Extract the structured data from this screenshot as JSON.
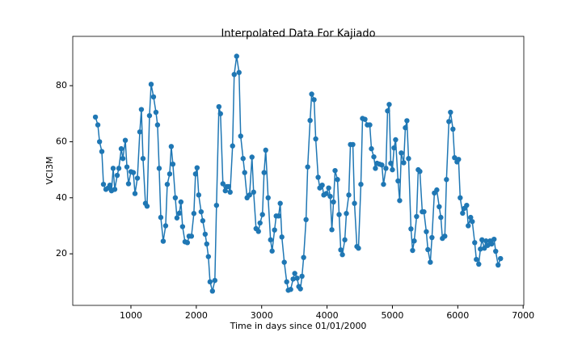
{
  "chart_data": {
    "type": "line",
    "title": "Interpolated Data For Kajiado",
    "x_label": "Time in days since 01/01/2000",
    "y_label": "VCI3M",
    "color": "#1f77b4",
    "markers": true,
    "xlim": [
      110,
      7010
    ],
    "ylim": [
      1.6,
      97.6
    ],
    "xticks": [
      1000,
      2000,
      3000,
      4000,
      5000,
      6000,
      7000
    ],
    "yticks": [
      20,
      40,
      60,
      80
    ],
    "x": [
      457,
      494,
      520,
      555,
      580,
      617,
      652,
      679,
      703,
      728,
      753,
      790,
      815,
      852,
      877,
      914,
      939,
      963,
      1000,
      1037,
      1062,
      1099,
      1136,
      1160,
      1185,
      1222,
      1247,
      1284,
      1309,
      1346,
      1383,
      1407,
      1432,
      1457,
      1494,
      1531,
      1556,
      1593,
      1617,
      1642,
      1679,
      1704,
      1741,
      1765,
      1790,
      1827,
      1864,
      1889,
      1926,
      1963,
      1988,
      2012,
      2037,
      2074,
      2099,
      2136,
      2160,
      2185,
      2210,
      2247,
      2284,
      2309,
      2346,
      2370,
      2407,
      2444,
      2469,
      2494,
      2518,
      2555,
      2580,
      2617,
      2654,
      2679,
      2716,
      2740,
      2777,
      2815,
      2852,
      2877,
      2914,
      2951,
      2975,
      3012,
      3037,
      3062,
      3099,
      3136,
      3160,
      3197,
      3222,
      3259,
      3284,
      3309,
      3346,
      3383,
      3407,
      3444,
      3481,
      3506,
      3543,
      3568,
      3593,
      3617,
      3642,
      3679,
      3704,
      3741,
      3765,
      3802,
      3827,
      3864,
      3889,
      3926,
      3950,
      3988,
      4025,
      4049,
      4074,
      4099,
      4123,
      4160,
      4185,
      4210,
      4235,
      4272,
      4296,
      4333,
      4358,
      4395,
      4420,
      4457,
      4481,
      4518,
      4543,
      4580,
      4617,
      4654,
      4679,
      4716,
      4740,
      4765,
      4802,
      4839,
      4864,
      4901,
      4926,
      4951,
      4975,
      5000,
      5025,
      5049,
      5086,
      5111,
      5136,
      5173,
      5198,
      5222,
      5247,
      5284,
      5309,
      5334,
      5370,
      5395,
      5420,
      5457,
      5482,
      5519,
      5543,
      5580,
      5605,
      5642,
      5679,
      5716,
      5741,
      5765,
      5802,
      5827,
      5864,
      5889,
      5926,
      5951,
      5988,
      6012,
      6037,
      6074,
      6099,
      6136,
      6160,
      6197,
      6222,
      6259,
      6284,
      6321,
      6346,
      6370,
      6407,
      6432,
      6457,
      6494,
      6518,
      6555,
      6580,
      6617,
      6654
    ],
    "values": [
      68.8,
      66,
      60,
      56.5,
      44.8,
      43,
      43.5,
      44.5,
      42.5,
      50.5,
      43,
      48,
      50.5,
      57.5,
      54,
      60.5,
      51,
      45,
      49.3,
      49,
      41.5,
      47,
      63.5,
      71.5,
      54,
      38,
      37,
      69.3,
      80.5,
      76,
      70.5,
      66,
      50.5,
      33,
      24.5,
      30,
      44.8,
      48.5,
      58.3,
      52,
      40,
      32.8,
      34.5,
      38.5,
      29.7,
      24.3,
      24,
      26.3,
      26.3,
      34.4,
      48.5,
      50.7,
      41,
      35,
      31.8,
      27,
      23.5,
      19,
      10,
      6.7,
      10.5,
      37.3,
      72.5,
      70,
      45,
      42.5,
      44,
      44,
      42,
      58.5,
      84,
      90.5,
      84.7,
      62,
      54,
      49,
      40,
      41,
      54.5,
      42,
      29,
      28,
      31,
      34,
      49,
      57,
      40,
      25,
      21,
      28.5,
      33.5,
      33.5,
      38,
      26,
      17,
      10,
      7,
      7.3,
      11,
      13,
      11.3,
      8.3,
      7.5,
      12,
      18.7,
      32.2,
      51,
      67.6,
      77,
      75,
      61,
      47.3,
      43.5,
      44.5,
      41,
      41.5,
      43.5,
      40.5,
      28.6,
      38.5,
      49.7,
      46.5,
      34,
      21.4,
      19.7,
      25,
      34.4,
      41,
      59,
      59,
      38,
      22.6,
      22,
      44.8,
      68.3,
      68,
      66,
      66,
      57.5,
      54.6,
      50.5,
      52.3,
      52,
      51.7,
      44.8,
      50.5,
      71,
      73.3,
      52.3,
      50,
      57.8,
      60.7,
      46,
      39,
      56,
      52.5,
      65,
      67.5,
      54,
      28.9,
      21.2,
      24.6,
      33.3,
      50,
      49.4,
      35,
      35,
      27.9,
      21.5,
      17,
      25.8,
      41.7,
      42.8,
      36.8,
      33,
      25.5,
      26.3,
      46.5,
      67.2,
      70.5,
      64.5,
      54.3,
      52.8,
      53.7,
      40,
      34.5,
      36.2,
      37.3,
      30,
      33,
      31.5,
      24,
      18,
      16.3,
      21.7,
      25,
      22,
      24.6,
      23,
      24.6,
      23.5,
      25.2,
      20.9,
      16,
      18.3
    ]
  }
}
